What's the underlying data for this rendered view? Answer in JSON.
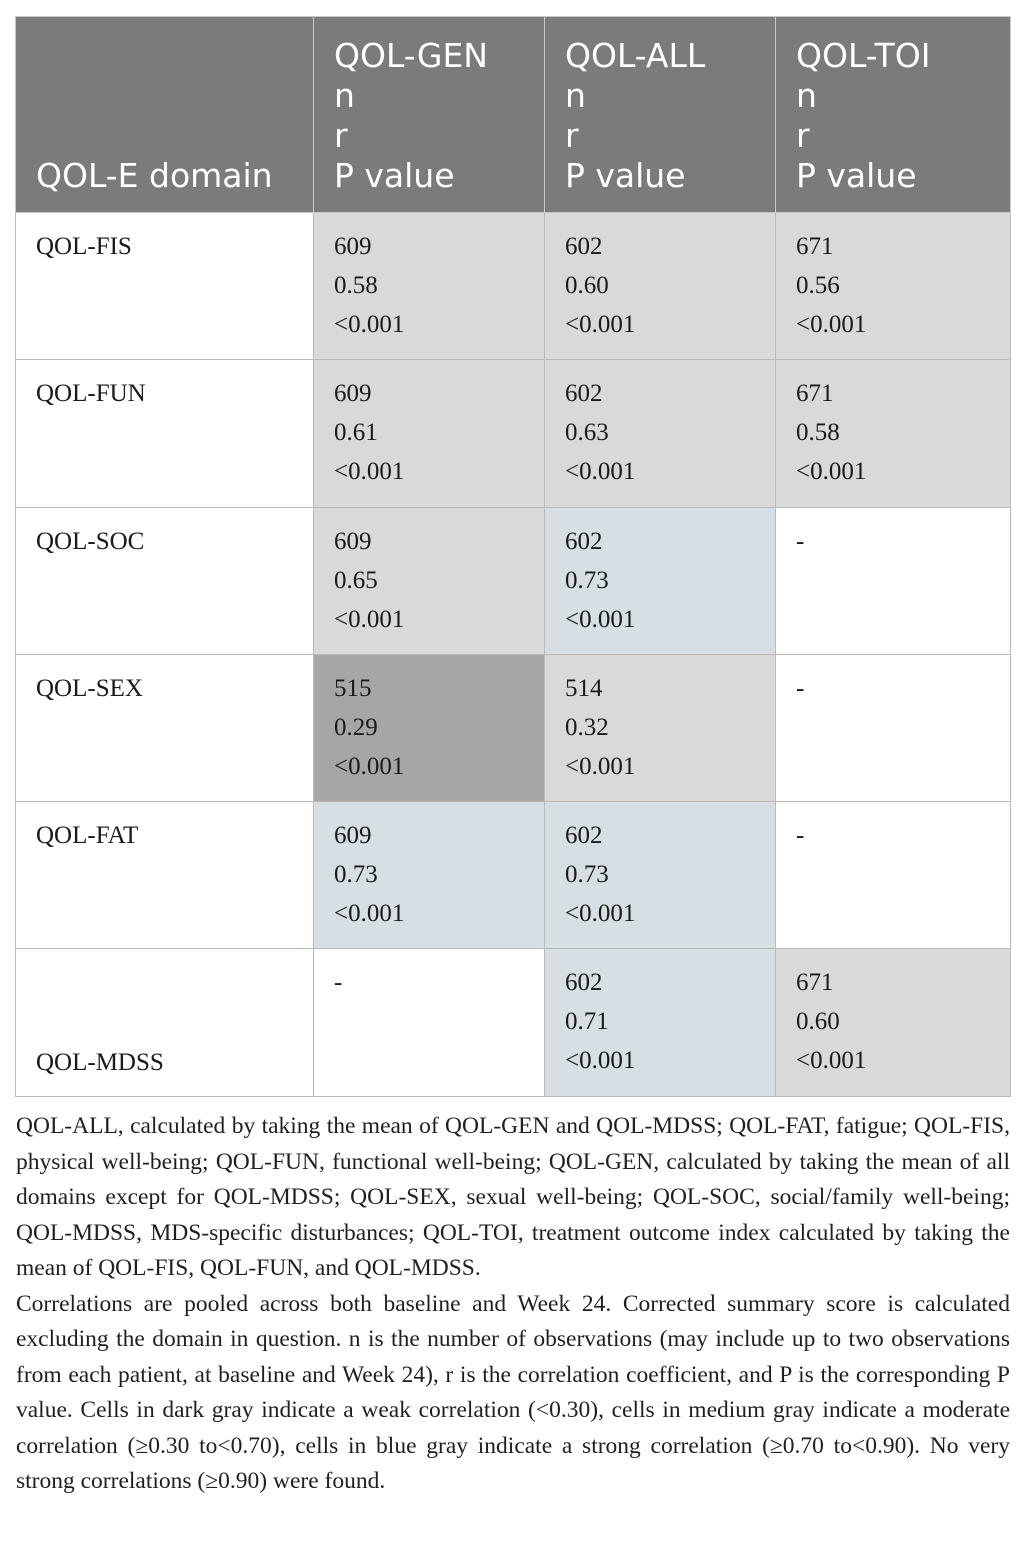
{
  "table": {
    "headers": [
      [
        "QOL-E domain"
      ],
      [
        "QOL-GEN",
        "n",
        "r",
        "P value"
      ],
      [
        "QOL-ALL",
        "n",
        "r",
        "P value"
      ],
      [
        "QOL-TOI",
        "n",
        "r",
        "P value"
      ]
    ],
    "rows": [
      {
        "domain": "QOL-FIS",
        "cells": [
          {
            "lines": [
              "609",
              "0.58",
              "<0.001"
            ],
            "shade": "medium"
          },
          {
            "lines": [
              "602",
              "0.60",
              "<0.001"
            ],
            "shade": "medium"
          },
          {
            "lines": [
              "671",
              "0.56",
              "<0.001"
            ],
            "shade": "medium"
          }
        ]
      },
      {
        "domain": "QOL-FUN",
        "cells": [
          {
            "lines": [
              "609",
              "0.61",
              "<0.001"
            ],
            "shade": "medium"
          },
          {
            "lines": [
              "602",
              "0.63",
              "<0.001"
            ],
            "shade": "medium"
          },
          {
            "lines": [
              "671",
              "0.58",
              "<0.001"
            ],
            "shade": "medium"
          }
        ]
      },
      {
        "domain": "QOL-SOC",
        "cells": [
          {
            "lines": [
              "609",
              "0.65",
              "<0.001"
            ],
            "shade": "medium"
          },
          {
            "lines": [
              "602",
              "0.73",
              "<0.001"
            ],
            "shade": "blue"
          },
          {
            "lines": [
              "-"
            ],
            "shade": "none"
          }
        ]
      },
      {
        "domain": "QOL-SEX",
        "cells": [
          {
            "lines": [
              "515",
              "0.29",
              "<0.001"
            ],
            "shade": "dark"
          },
          {
            "lines": [
              "514",
              "0.32",
              "<0.001"
            ],
            "shade": "medium"
          },
          {
            "lines": [
              "-"
            ],
            "shade": "none"
          }
        ]
      },
      {
        "domain": "QOL-FAT",
        "cells": [
          {
            "lines": [
              "609",
              "0.73",
              "<0.001"
            ],
            "shade": "blue"
          },
          {
            "lines": [
              "602",
              "0.73",
              "<0.001"
            ],
            "shade": "blue"
          },
          {
            "lines": [
              "-"
            ],
            "shade": "none"
          }
        ]
      },
      {
        "domain": "QOL-MDSS",
        "domain_align": "bottom",
        "cells": [
          {
            "lines": [
              "-"
            ],
            "shade": "none"
          },
          {
            "lines": [
              "602",
              "0.71",
              "<0.001"
            ],
            "shade": "blue"
          },
          {
            "lines": [
              "671",
              "0.60",
              "<0.001"
            ],
            "shade": "medium"
          }
        ]
      }
    ]
  },
  "footnote": {
    "abbreviations": "QOL-ALL, calculated by taking the mean of QOL-GEN and QOL-MDSS; QOL-FAT, fatigue; QOL-FIS, physical well-being; QOL-FUN, functional well-being; QOL-GEN, calculated by taking the mean of all domains except for QOL-MDSS; QOL-SEX, sexual well-being; QOL-SOC, social/family well-being; QOL-MDSS, MDS-specific disturbances; QOL-TOI, treatment outcome index calculated by taking the mean of QOL-FIS, QOL-FUN, and QOL-MDSS.",
    "explanation": "Correlations are pooled across both baseline and Week 24. Corrected summary score is calculated excluding the domain in question. n is the number of observations (may include up to two observations from each patient, at baseline and Week 24), r is the correlation coefficient, and P is the corresponding P value. Cells in dark gray indicate a weak correlation (<0.30), cells in medium gray indicate a moderate correlation (≥0.30 to<0.70), cells in blue gray indicate a strong correlation (≥0.70 to<0.90). No very strong correlations (≥0.90) were found."
  },
  "colors": {
    "header_bg": "#7a7b7c",
    "header_text": "#ffffff",
    "shade_dark": "#a6a6a6",
    "shade_medium": "#d9d9d9",
    "shade_blue": "#d5dfe4",
    "shade_none": "#ffffff"
  }
}
